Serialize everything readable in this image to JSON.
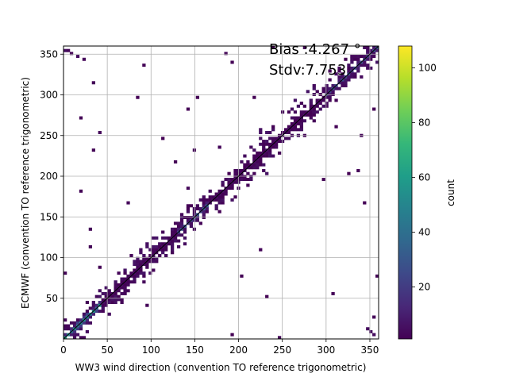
{
  "chart_data": {
    "type": "heatmap",
    "xlabel": "WW3 wind direction (convention TO reference trigonometric)",
    "ylabel": "ECMWF (convention TO reference trigonometric)",
    "xlim": [
      0,
      360
    ],
    "ylim": [
      0,
      360
    ],
    "xticks": [
      0,
      50,
      100,
      150,
      200,
      250,
      300,
      350
    ],
    "yticks": [
      50,
      100,
      150,
      200,
      250,
      300,
      350
    ],
    "grid": true,
    "annotations": [
      "Bias :4.267 °",
      "Stdv:7.753"
    ],
    "colorbar": {
      "label": "count",
      "min": 1,
      "max": 108,
      "ticks": [
        20,
        40,
        60,
        80,
        100
      ],
      "colormap": "viridis",
      "stops": [
        "#440154",
        "#482878",
        "#3e4989",
        "#31688e",
        "#26828e",
        "#1f9e89",
        "#35b779",
        "#6ece58",
        "#b5de2b",
        "#fde725"
      ]
    },
    "bins": 100,
    "structure": "dense cluster along the diagonal y = x from 0 to 360, spread about ±20 degrees, highest counts near the diagonal at low angles (~0-40) and near 140-160, with scattered isolated points elsewhere and wrap-around points near (0,355) and (355,0)"
  }
}
